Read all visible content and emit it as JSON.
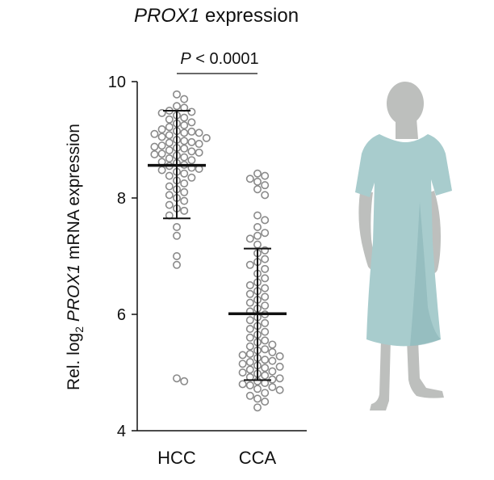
{
  "chart_data": {
    "type": "scatter",
    "title_gene": "PROX1",
    "title_rest": " expression",
    "ylabel_parts": {
      "pre": "Rel. log",
      "sub": "2",
      "gene": "PROX1",
      "post": " mRNA expression"
    },
    "ylim": [
      4,
      10
    ],
    "yticks": [
      "4",
      "6",
      "8",
      "10"
    ],
    "categories": [
      "HCC",
      "CCA"
    ],
    "annotation": "P < 0.0001",
    "groups": [
      {
        "name": "HCC",
        "mean": 8.56,
        "sd_low": 7.65,
        "sd_high": 9.5,
        "values": [
          9.78,
          9.7,
          9.58,
          9.55,
          9.5,
          9.48,
          9.46,
          9.42,
          9.38,
          9.35,
          9.3,
          9.28,
          9.25,
          9.22,
          9.18,
          9.15,
          9.14,
          9.12,
          9.12,
          9.1,
          9.08,
          9.05,
          9.03,
          9.0,
          8.98,
          8.96,
          8.95,
          8.93,
          8.9,
          8.88,
          8.86,
          8.85,
          8.82,
          8.8,
          8.78,
          8.76,
          8.75,
          8.73,
          8.7,
          8.68,
          8.65,
          8.62,
          8.6,
          8.57,
          8.55,
          8.52,
          8.5,
          8.48,
          8.45,
          8.42,
          8.38,
          8.35,
          8.3,
          8.25,
          8.2,
          8.15,
          8.1,
          8.05,
          8.0,
          7.95,
          7.88,
          7.82,
          7.78,
          7.7,
          7.5,
          7.35,
          7.0,
          6.85,
          4.9,
          4.85
        ]
      },
      {
        "name": "CCA",
        "mean": 6.01,
        "sd_low": 4.87,
        "sd_high": 7.13,
        "values": [
          8.42,
          8.38,
          8.33,
          8.28,
          8.22,
          8.15,
          8.05,
          7.7,
          7.62,
          7.5,
          7.4,
          7.35,
          7.3,
          7.2,
          7.1,
          7.05,
          6.95,
          6.9,
          6.85,
          6.78,
          6.7,
          6.62,
          6.55,
          6.5,
          6.45,
          6.4,
          6.35,
          6.3,
          6.25,
          6.2,
          6.15,
          6.1,
          6.05,
          6.0,
          5.95,
          5.9,
          5.85,
          5.8,
          5.75,
          5.7,
          5.65,
          5.6,
          5.55,
          5.52,
          5.48,
          5.45,
          5.4,
          5.38,
          5.35,
          5.32,
          5.3,
          5.28,
          5.25,
          5.22,
          5.2,
          5.18,
          5.15,
          5.12,
          5.1,
          5.08,
          5.05,
          5.02,
          5.0,
          4.98,
          4.95,
          4.92,
          4.9,
          4.88,
          4.85,
          4.82,
          4.8,
          4.78,
          4.75,
          4.72,
          4.7,
          4.65,
          4.6,
          4.55,
          4.5,
          4.4
        ]
      }
    ]
  },
  "colors": {
    "dot": "#8a8a8a",
    "line": "#111111",
    "gown": "#a8cccd",
    "gown_shade": "#86b3b6",
    "skin": "#bdbfbd",
    "skin_shade": "#a9abaa"
  }
}
